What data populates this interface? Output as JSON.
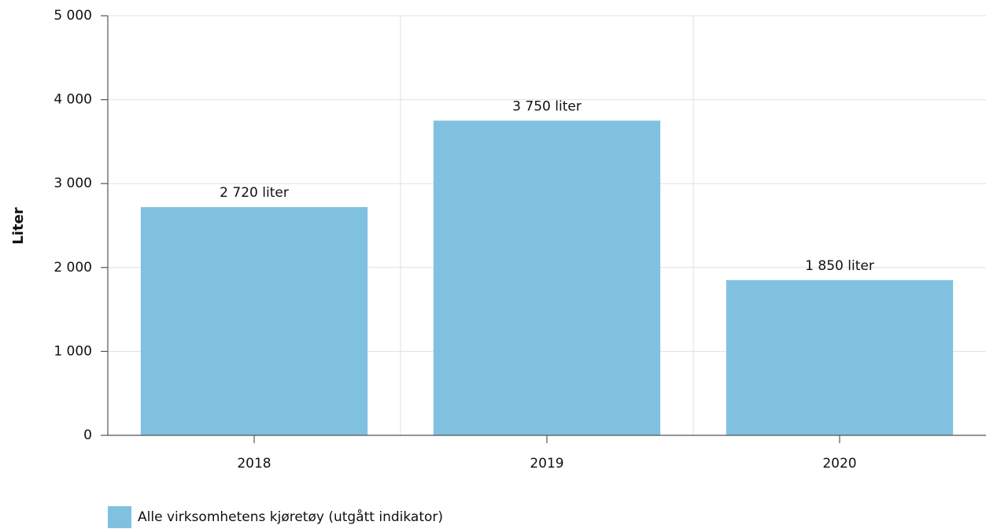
{
  "chart_data": {
    "type": "bar",
    "y_label": "Liter",
    "categories": [
      "2018",
      "2019",
      "2020"
    ],
    "series": [
      {
        "name": "Alle virksomhetens kjøretøy (utgått indikator)",
        "color": "#80c1e0",
        "values": [
          2720,
          3750,
          1850
        ],
        "value_labels": [
          "2 720 liter",
          "3 750 liter",
          "1 850 liter"
        ]
      }
    ],
    "ylim": [
      0,
      5000
    ],
    "yticks": [
      0,
      {
        "value": 1000,
        "label": "1 000"
      },
      {
        "value": 2000,
        "label": "2 000"
      },
      {
        "value": 3000,
        "label": "3 000"
      },
      {
        "value": 4000,
        "label": "4 000"
      },
      {
        "value": 5000,
        "label": "5 000"
      }
    ],
    "grid": true,
    "legend": "bottom-left"
  }
}
